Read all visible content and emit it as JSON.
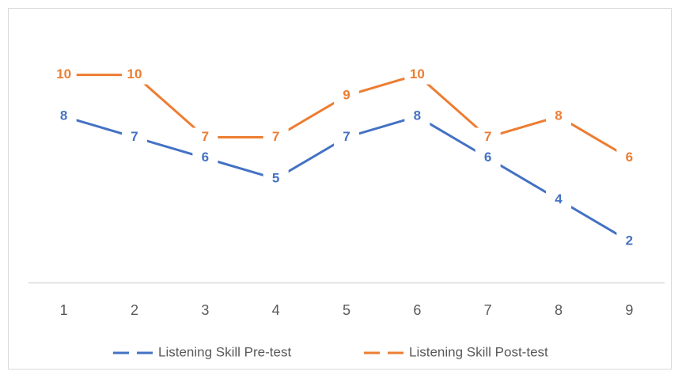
{
  "chart_data": {
    "type": "line",
    "categories": [
      "1",
      "2",
      "3",
      "4",
      "5",
      "6",
      "7",
      "8",
      "9"
    ],
    "series": [
      {
        "name": "Listening Skill Pre-test",
        "color": "#4472c4",
        "values": [
          8,
          7,
          6,
          5,
          7,
          8,
          6,
          4,
          2
        ]
      },
      {
        "name": "Listening Skill Post-test",
        "color": "#ed7d31",
        "values": [
          10,
          10,
          7,
          7,
          9,
          10,
          7,
          8,
          6
        ]
      }
    ],
    "ylim": [
      0,
      12
    ],
    "legend": "bottom",
    "grid": false
  }
}
